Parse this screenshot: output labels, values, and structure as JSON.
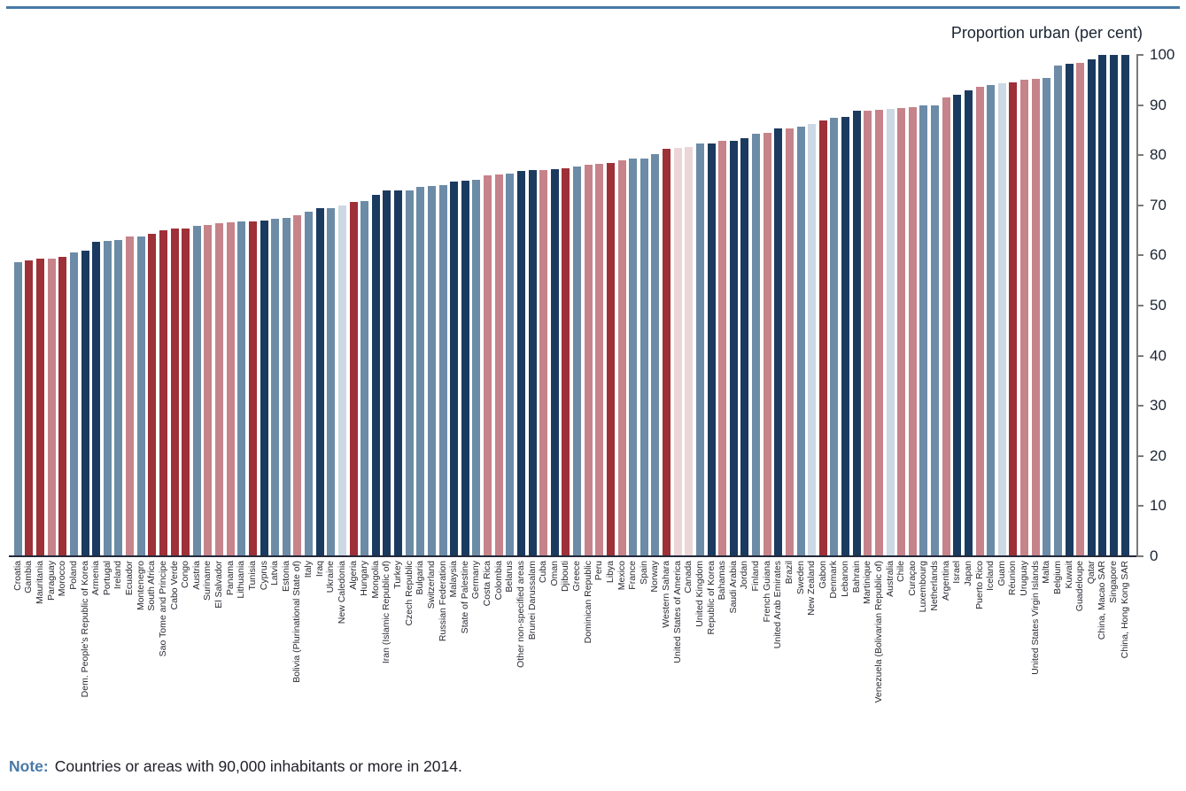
{
  "title": "Proportion urban (per cent)",
  "note": {
    "label": "Note:",
    "text": "Countries or areas with 90,000 inhabitants or more in 2014."
  },
  "colors": {
    "top_rule": "#4879A6",
    "note_label": "#4879A6",
    "axis_line": "#7a7a7a",
    "baseline": "#23293A",
    "text": "#1A2433"
  },
  "region_colors": {
    "africa": "#9E3038",
    "asia": "#1B3A5F",
    "europe": "#6C8BA7",
    "lac": "#C6838A",
    "n_america": "#EBD5D7",
    "oceania": "#CCD8E3"
  },
  "axis": {
    "min": 0,
    "max": 100,
    "ticks": [
      0,
      10,
      20,
      30,
      40,
      50,
      60,
      70,
      80,
      90,
      100
    ],
    "position": "right"
  },
  "chart_data": {
    "type": "bar",
    "title": "Proportion urban (per cent)",
    "ylabel": "Proportion urban (per cent)",
    "ylim": [
      0,
      100
    ],
    "grid": false,
    "legend": "none",
    "series": [
      {
        "name": "Croatia",
        "value": 58.6,
        "region": "europe"
      },
      {
        "name": "Gambia",
        "value": 59.0,
        "region": "africa"
      },
      {
        "name": "Mauritania",
        "value": 59.3,
        "region": "africa"
      },
      {
        "name": "Paraguay",
        "value": 59.4,
        "region": "lac"
      },
      {
        "name": "Morocco",
        "value": 59.7,
        "region": "africa"
      },
      {
        "name": "Poland",
        "value": 60.6,
        "region": "europe"
      },
      {
        "name": "Dem. People's Republic of Korea",
        "value": 60.9,
        "region": "asia"
      },
      {
        "name": "Armenia",
        "value": 62.7,
        "region": "asia"
      },
      {
        "name": "Portugal",
        "value": 62.9,
        "region": "europe"
      },
      {
        "name": "Ireland",
        "value": 63.0,
        "region": "europe"
      },
      {
        "name": "Ecuador",
        "value": 63.7,
        "region": "lac"
      },
      {
        "name": "Montenegro",
        "value": 63.8,
        "region": "europe"
      },
      {
        "name": "South Africa",
        "value": 64.3,
        "region": "africa"
      },
      {
        "name": "Sao Tome and Principe",
        "value": 65.1,
        "region": "africa"
      },
      {
        "name": "Cabo Verde",
        "value": 65.3,
        "region": "africa"
      },
      {
        "name": "Congo",
        "value": 65.4,
        "region": "africa"
      },
      {
        "name": "Austria",
        "value": 65.9,
        "region": "europe"
      },
      {
        "name": "Suriname",
        "value": 66.0,
        "region": "lac"
      },
      {
        "name": "El Salvador",
        "value": 66.4,
        "region": "lac"
      },
      {
        "name": "Panama",
        "value": 66.6,
        "region": "lac"
      },
      {
        "name": "Lithuania",
        "value": 66.7,
        "region": "europe"
      },
      {
        "name": "Tunisia",
        "value": 66.8,
        "region": "africa"
      },
      {
        "name": "Cyprus",
        "value": 67.0,
        "region": "asia"
      },
      {
        "name": "Latvia",
        "value": 67.4,
        "region": "europe"
      },
      {
        "name": "Estonia",
        "value": 67.5,
        "region": "europe"
      },
      {
        "name": "Bolivia (Plurinational State of)",
        "value": 68.1,
        "region": "lac"
      },
      {
        "name": "Italy",
        "value": 68.8,
        "region": "europe"
      },
      {
        "name": "Iraq",
        "value": 69.4,
        "region": "asia"
      },
      {
        "name": "Ukraine",
        "value": 69.5,
        "region": "europe"
      },
      {
        "name": "New Caledonia",
        "value": 70.0,
        "region": "oceania"
      },
      {
        "name": "Algeria",
        "value": 70.7,
        "region": "africa"
      },
      {
        "name": "Hungary",
        "value": 70.8,
        "region": "europe"
      },
      {
        "name": "Mongolia",
        "value": 72.0,
        "region": "asia"
      },
      {
        "name": "Iran (Islamic Republic of)",
        "value": 72.9,
        "region": "asia"
      },
      {
        "name": "Turkey",
        "value": 73.0,
        "region": "asia"
      },
      {
        "name": "Czech Republic",
        "value": 73.0,
        "region": "europe"
      },
      {
        "name": "Bulgaria",
        "value": 73.6,
        "region": "europe"
      },
      {
        "name": "Switzerland",
        "value": 73.9,
        "region": "europe"
      },
      {
        "name": "Russian Federation",
        "value": 74.0,
        "region": "europe"
      },
      {
        "name": "Malaysia",
        "value": 74.7,
        "region": "asia"
      },
      {
        "name": "State of Palestine",
        "value": 75.0,
        "region": "asia"
      },
      {
        "name": "Germany",
        "value": 75.1,
        "region": "europe"
      },
      {
        "name": "Costa Rica",
        "value": 75.9,
        "region": "lac"
      },
      {
        "name": "Colombia",
        "value": 76.2,
        "region": "lac"
      },
      {
        "name": "Belarus",
        "value": 76.3,
        "region": "europe"
      },
      {
        "name": "Other non-specified areas",
        "value": 76.9,
        "region": "asia"
      },
      {
        "name": "Brunei Darussalam",
        "value": 77.0,
        "region": "asia"
      },
      {
        "name": "Cuba",
        "value": 77.1,
        "region": "lac"
      },
      {
        "name": "Oman",
        "value": 77.2,
        "region": "asia"
      },
      {
        "name": "Djibouti",
        "value": 77.3,
        "region": "africa"
      },
      {
        "name": "Greece",
        "value": 77.7,
        "region": "europe"
      },
      {
        "name": "Dominican Republic",
        "value": 78.1,
        "region": "lac"
      },
      {
        "name": "Peru",
        "value": 78.3,
        "region": "lac"
      },
      {
        "name": "Libya",
        "value": 78.4,
        "region": "africa"
      },
      {
        "name": "Mexico",
        "value": 79.0,
        "region": "lac"
      },
      {
        "name": "France",
        "value": 79.3,
        "region": "europe"
      },
      {
        "name": "Spain",
        "value": 79.4,
        "region": "europe"
      },
      {
        "name": "Norway",
        "value": 80.2,
        "region": "europe"
      },
      {
        "name": "Western Sahara",
        "value": 81.2,
        "region": "africa"
      },
      {
        "name": "United States of America",
        "value": 81.4,
        "region": "n_america"
      },
      {
        "name": "Canada",
        "value": 81.6,
        "region": "n_america"
      },
      {
        "name": "United Kingdom",
        "value": 82.3,
        "region": "europe"
      },
      {
        "name": "Republic of Korea",
        "value": 82.4,
        "region": "asia"
      },
      {
        "name": "Bahamas",
        "value": 82.8,
        "region": "lac"
      },
      {
        "name": "Saudi Arabia",
        "value": 82.9,
        "region": "asia"
      },
      {
        "name": "Jordan",
        "value": 83.4,
        "region": "asia"
      },
      {
        "name": "Finland",
        "value": 84.2,
        "region": "europe"
      },
      {
        "name": "French Guiana",
        "value": 84.5,
        "region": "lac"
      },
      {
        "name": "United Arab Emirates",
        "value": 85.3,
        "region": "asia"
      },
      {
        "name": "Brazil",
        "value": 85.4,
        "region": "lac"
      },
      {
        "name": "Sweden",
        "value": 85.7,
        "region": "europe"
      },
      {
        "name": "New Zealand",
        "value": 86.2,
        "region": "oceania"
      },
      {
        "name": "Gabon",
        "value": 86.9,
        "region": "africa"
      },
      {
        "name": "Denmark",
        "value": 87.5,
        "region": "europe"
      },
      {
        "name": "Lebanon",
        "value": 87.7,
        "region": "asia"
      },
      {
        "name": "Bahrain",
        "value": 88.8,
        "region": "asia"
      },
      {
        "name": "Martinique",
        "value": 88.9,
        "region": "lac"
      },
      {
        "name": "Venezuela (Bolivarian Republic of)",
        "value": 89.0,
        "region": "lac"
      },
      {
        "name": "Australia",
        "value": 89.3,
        "region": "oceania"
      },
      {
        "name": "Chile",
        "value": 89.4,
        "region": "lac"
      },
      {
        "name": "Curaçao",
        "value": 89.6,
        "region": "lac"
      },
      {
        "name": "Luxembourg",
        "value": 89.9,
        "region": "europe"
      },
      {
        "name": "Netherlands",
        "value": 89.9,
        "region": "europe"
      },
      {
        "name": "Argentina",
        "value": 91.6,
        "region": "lac"
      },
      {
        "name": "Israel",
        "value": 92.1,
        "region": "asia"
      },
      {
        "name": "Japan",
        "value": 93.0,
        "region": "asia"
      },
      {
        "name": "Puerto Rico",
        "value": 93.6,
        "region": "lac"
      },
      {
        "name": "Iceland",
        "value": 94.0,
        "region": "europe"
      },
      {
        "name": "Guam",
        "value": 94.3,
        "region": "oceania"
      },
      {
        "name": "Réunion",
        "value": 94.5,
        "region": "africa"
      },
      {
        "name": "Uruguay",
        "value": 95.1,
        "region": "lac"
      },
      {
        "name": "United States Virgin Islands",
        "value": 95.3,
        "region": "lac"
      },
      {
        "name": "Malta",
        "value": 95.4,
        "region": "europe"
      },
      {
        "name": "Belgium",
        "value": 97.8,
        "region": "europe"
      },
      {
        "name": "Kuwait",
        "value": 98.3,
        "region": "asia"
      },
      {
        "name": "Guadeloupe",
        "value": 98.4,
        "region": "lac"
      },
      {
        "name": "Qatar",
        "value": 99.2,
        "region": "asia"
      },
      {
        "name": "China, Macao SAR",
        "value": 100.0,
        "region": "asia"
      },
      {
        "name": "Singapore",
        "value": 100.0,
        "region": "asia"
      },
      {
        "name": "China, Hong Kong SAR",
        "value": 100.0,
        "region": "asia"
      }
    ]
  }
}
